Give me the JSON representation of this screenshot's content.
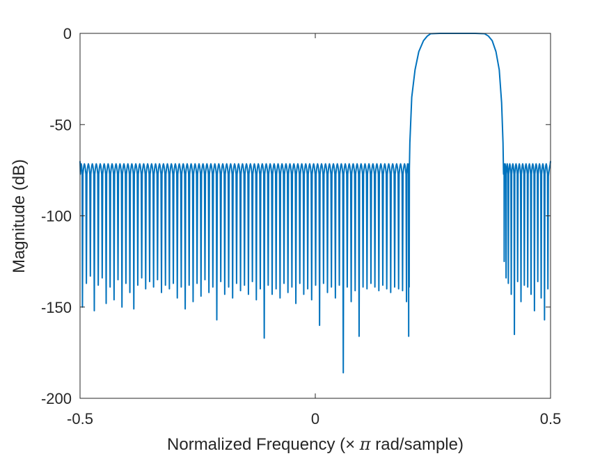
{
  "chart_data": {
    "type": "line",
    "title": "",
    "xlabel_parts": [
      "Normalized Frequency (",
      "×",
      " ",
      "π",
      " rad/sample)"
    ],
    "ylabel": "Magnitude (dB)",
    "xlim": [
      -0.5,
      0.5
    ],
    "ylim": [
      -200,
      0
    ],
    "x_ticks": [
      -0.5,
      0,
      0.5
    ],
    "x_tick_labels": [
      "-0.5",
      "0",
      "0.5"
    ],
    "y_ticks": [
      0,
      -50,
      -100,
      -150,
      -200
    ],
    "y_tick_labels": [
      "0",
      "-50",
      "-100",
      "-150",
      "-200"
    ],
    "grid": false,
    "line_color": "#0072bd",
    "axis_color": "#262626",
    "series": [
      {
        "passband": [
          0.2,
          0.4
        ],
        "passband_flat": [
          0.245,
          0.36
        ],
        "passband_level_db": 0,
        "stopband_ripple_peak_db": -70,
        "stopband_nulls_left": {
          "x": [
            -0.4949,
            -0.4865,
            -0.4781,
            -0.4697,
            -0.4613,
            -0.4529,
            -0.4445,
            -0.4361,
            -0.4277,
            -0.4193,
            -0.4109,
            -0.4025,
            -0.3941,
            -0.3857,
            -0.3773,
            -0.3689,
            -0.3605,
            -0.3521,
            -0.3437,
            -0.3353,
            -0.3269,
            -0.3185,
            -0.3101,
            -0.3017,
            -0.2933,
            -0.2849,
            -0.2765,
            -0.2681,
            -0.2597,
            -0.2513,
            -0.2429,
            -0.2345,
            -0.2261,
            -0.2177,
            -0.2093,
            -0.2009,
            -0.1925,
            -0.1841,
            -0.1757,
            -0.1673,
            -0.1589,
            -0.1505,
            -0.1421,
            -0.1337,
            -0.1253,
            -0.1169,
            -0.1085,
            -0.1001,
            -0.0917,
            -0.0833,
            -0.0749,
            -0.0665,
            -0.0581,
            -0.0497,
            -0.0413,
            -0.0329,
            -0.0245,
            -0.0161,
            -0.0077,
            0.0007,
            0.0091,
            0.0175,
            0.0259,
            0.0343,
            0.0427,
            0.0511,
            0.0595,
            0.0679,
            0.0763,
            0.0847,
            0.0931,
            0.1015,
            0.1099,
            0.1183,
            0.1267,
            0.1351,
            0.1435,
            0.1519,
            0.1603,
            0.1687,
            0.1771,
            0.1855,
            0.1939,
            0.1985,
            0.1996
          ],
          "y": [
            -150,
            -137,
            -133,
            -152,
            -138,
            -134,
            -148,
            -139,
            -146,
            -135,
            -150,
            -137,
            -142,
            -151,
            -138,
            -134,
            -140,
            -136,
            -139,
            -135,
            -142,
            -138,
            -140,
            -137,
            -145,
            -139,
            -151,
            -138,
            -147,
            -137,
            -144,
            -135,
            -142,
            -139,
            -157,
            -136,
            -143,
            -139,
            -145,
            -137,
            -141,
            -138,
            -143,
            -136,
            -146,
            -140,
            -167,
            -138,
            -143,
            -140,
            -145,
            -137,
            -142,
            -139,
            -148,
            -137,
            -143,
            -140,
            -146,
            -138,
            -160,
            -137,
            -142,
            -139,
            -145,
            -138,
            -186,
            -139,
            -147,
            -141,
            -166,
            -139,
            -140,
            -137,
            -139,
            -141,
            -138,
            -140,
            -142,
            -139,
            -140,
            -141,
            -147,
            -166,
            -139
          ]
        },
        "stopband_nulls_right": {
          "x": [
            0.4015,
            0.4055,
            0.4103,
            0.4165,
            0.4232,
            0.4301,
            0.4372,
            0.4443,
            0.4515,
            0.4586,
            0.4658,
            0.4729,
            0.4801,
            0.4872,
            0.4944
          ],
          "y": [
            -125,
            -134,
            -137,
            -143,
            -165,
            -136,
            -147,
            -138,
            -139,
            -143,
            -152,
            -136,
            -145,
            -157,
            -140
          ]
        }
      }
    ]
  }
}
